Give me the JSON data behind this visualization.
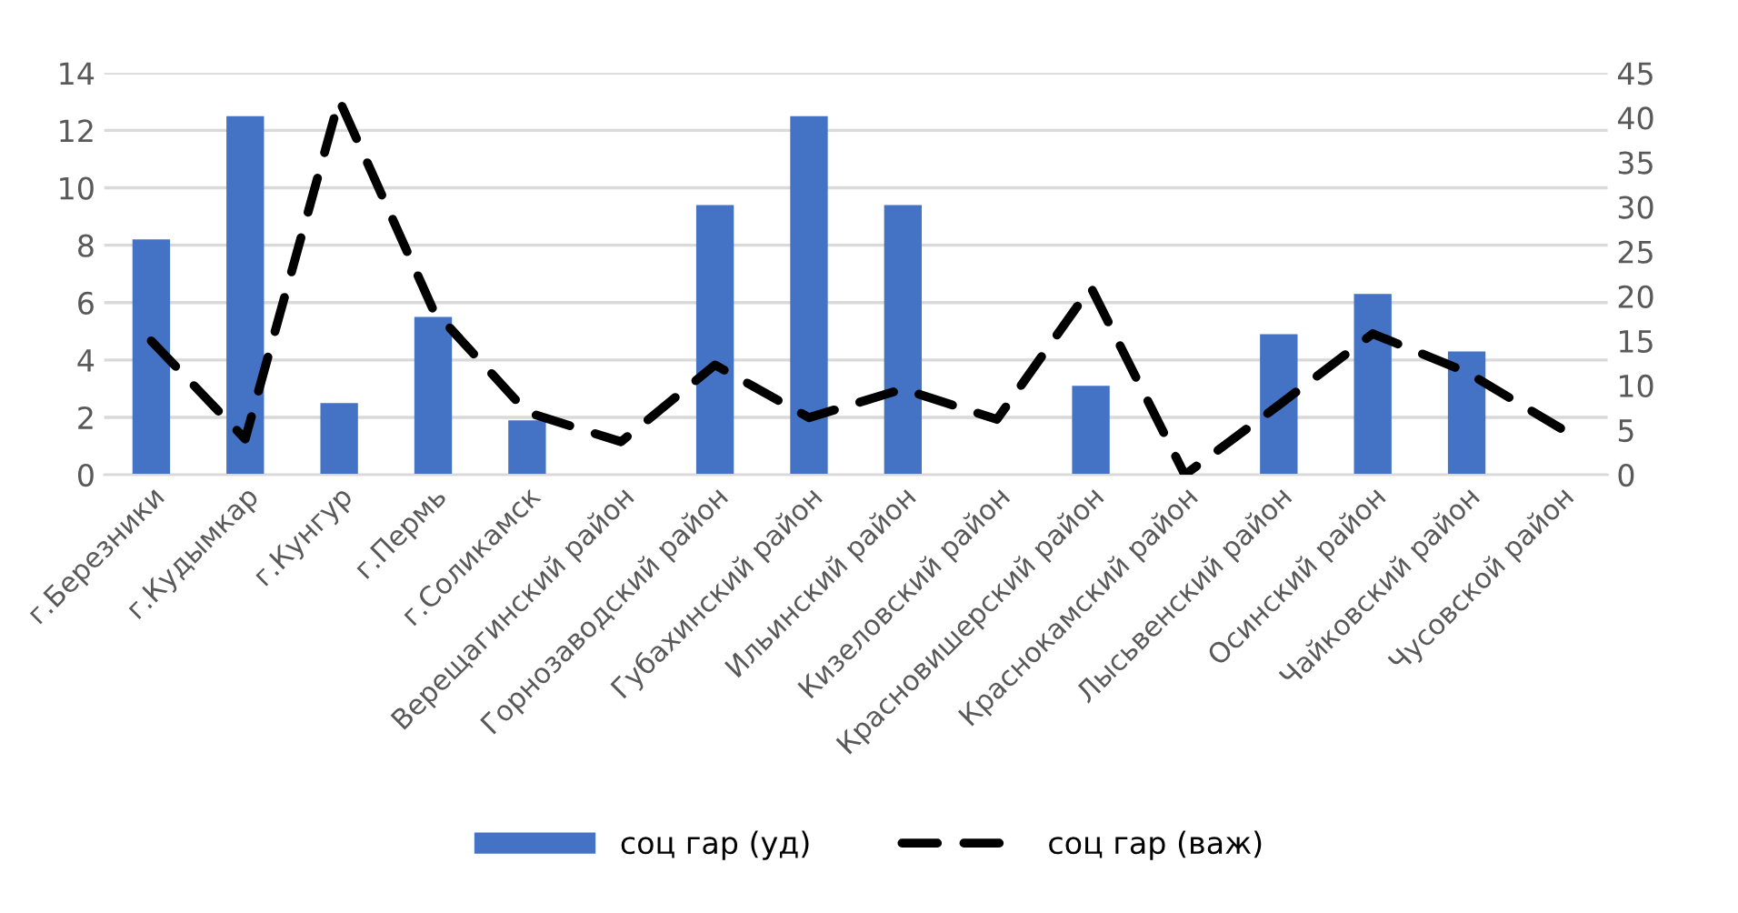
{
  "chart_data": {
    "type": "bar",
    "categories": [
      "г.Березники",
      "г.Кудымкар",
      "г.Кунгур",
      "г.Пермь",
      "г.Соликамск",
      "Верещагинский район",
      "Горнозаводский район",
      "Губахинский район",
      "Ильинский район",
      "Кизеловский район",
      "Красновишерский район",
      "Краснокамский район",
      "Лысьвенский район",
      "Осинский район",
      "Чайковский район",
      "Чусовской район"
    ],
    "series": [
      {
        "name": "соц гар (уд)",
        "color": "#4472c4",
        "values": [
          8.2,
          12.5,
          2.5,
          5.5,
          1.9,
          0,
          9.4,
          12.5,
          9.4,
          0,
          3.1,
          0,
          4.9,
          6.3,
          4.3,
          0
        ]
      },
      {
        "name": "соц гар (важ)",
        "type": "line",
        "axis": "y2",
        "color": "#000000",
        "line_style": "dashed",
        "marker": "none",
        "values": [
          15,
          4,
          42,
          18.5,
          7,
          3.7,
          12.3,
          6.4,
          9.6,
          6.2,
          21,
          0,
          7.8,
          15.8,
          11.5,
          5.2
        ]
      }
    ],
    "ylim": [
      0,
      14
    ],
    "yticks": [
      0,
      2,
      4,
      6,
      8,
      10,
      12,
      14
    ],
    "y2lim": [
      0,
      45
    ],
    "y2ticks": [
      0,
      5,
      10,
      15,
      20,
      25,
      30,
      35,
      40,
      45
    ],
    "grid": "y",
    "legend": "bottom"
  }
}
